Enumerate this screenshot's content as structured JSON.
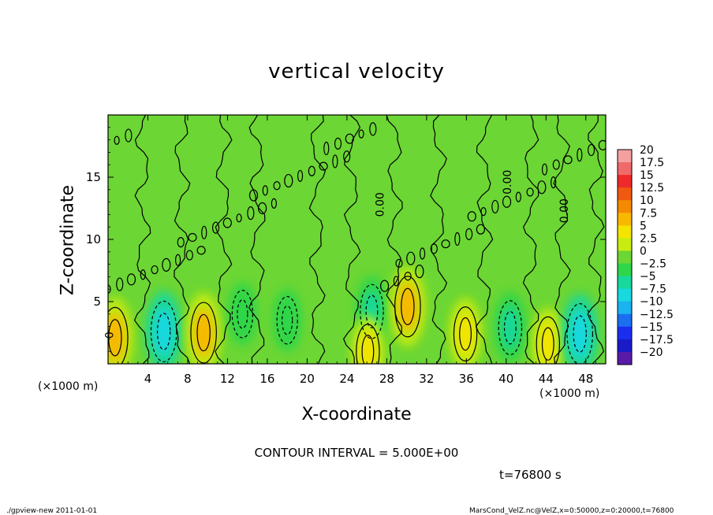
{
  "chart_data": {
    "type": "heatmap",
    "title": "vertical velocity",
    "xlabel": "X-coordinate",
    "ylabel": "Z-coordinate",
    "x_unit": "(×1000 m)",
    "xlim": [
      0,
      50
    ],
    "ylim": [
      0,
      20
    ],
    "x_ticks": [
      4,
      8,
      12,
      16,
      20,
      24,
      28,
      32,
      36,
      40,
      44,
      48
    ],
    "y_ticks": [
      5,
      10,
      15
    ],
    "contour_labels": [
      {
        "text": "0",
        "x": 0.5,
        "z": 2.3
      },
      {
        "text": "0.00",
        "x": 27.7,
        "z": 12.8
      },
      {
        "text": "0.00",
        "x": 40.5,
        "z": 14.6
      },
      {
        "text": "0.00",
        "x": 46.2,
        "z": 12.3
      }
    ],
    "colorbar": {
      "labels": [
        "20",
        "17.5",
        "15",
        "12.5",
        "10",
        "7.5",
        "5",
        "2.5",
        "0",
        "−2.5",
        "−5",
        "−7.5",
        "−10",
        "−12.5",
        "−15",
        "−17.5",
        "−20"
      ],
      "values": [
        20,
        17.5,
        15,
        12.5,
        10,
        7.5,
        5,
        2.5,
        0,
        -2.5,
        -5,
        -7.5,
        -10,
        -12.5,
        -15,
        -17.5,
        -20
      ],
      "colors": [
        "#f4a0a0",
        "#f06a6a",
        "#ee2a2a",
        "#f05a10",
        "#f58a00",
        "#f8b800",
        "#f4e400",
        "#c8ec10",
        "#6cd634",
        "#2ed64a",
        "#18d89c",
        "#18d8e0",
        "#1ab2f0",
        "#1a6ef0",
        "#1a2ef0",
        "#1a1ac8",
        "#5a1aa8"
      ]
    },
    "features": [
      {
        "kind": "updraft",
        "x": 0.7,
        "z": 2.1,
        "peak": 7.5
      },
      {
        "kind": "downdraft",
        "x": 5.6,
        "z": 2.6,
        "peak": -7.5
      },
      {
        "kind": "updraft",
        "x": 9.6,
        "z": 2.5,
        "peak": 7.5
      },
      {
        "kind": "downdraft",
        "x": 13.5,
        "z": 4.0,
        "peak": -2.5
      },
      {
        "kind": "downdraft",
        "x": 18.0,
        "z": 3.5,
        "peak": -2.5
      },
      {
        "kind": "downdraft",
        "x": 26.5,
        "z": 4.2,
        "peak": -5
      },
      {
        "kind": "updraft",
        "x": 26.1,
        "z": 1.0,
        "peak": 5
      },
      {
        "kind": "updraft",
        "x": 30.1,
        "z": 4.6,
        "peak": 7.5
      },
      {
        "kind": "updraft",
        "x": 35.9,
        "z": 2.4,
        "peak": 5
      },
      {
        "kind": "downdraft",
        "x": 40.4,
        "z": 2.9,
        "peak": -5
      },
      {
        "kind": "updraft",
        "x": 44.2,
        "z": 1.6,
        "peak": 5
      },
      {
        "kind": "downdraft",
        "x": 47.4,
        "z": 2.4,
        "peak": -7.5
      }
    ]
  },
  "annotations": {
    "contour_interval": "CONTOUR INTERVAL = 5.000E+00",
    "time": "t=76800 s",
    "footer_left": "./gpview-new   2011-01-01",
    "footer_right": "MarsCond_VelZ.nc@VelZ,x=0:50000,z=0:20000,t=76800"
  }
}
